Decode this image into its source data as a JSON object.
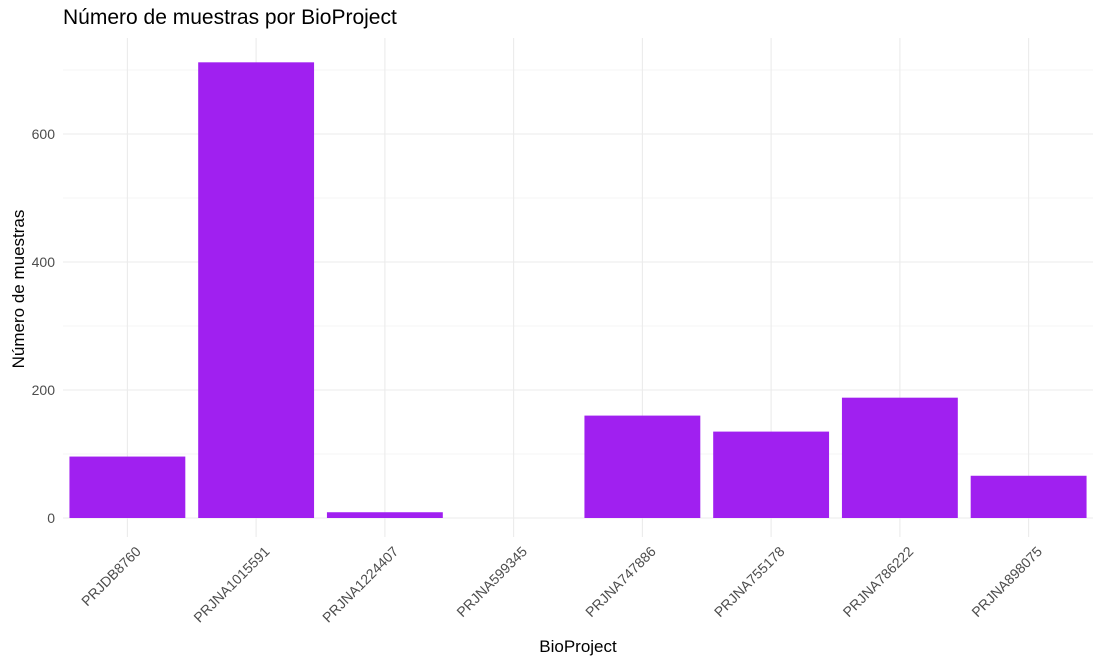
{
  "chart_data": {
    "type": "bar",
    "title": "Número de muestras por BioProject",
    "xlabel": "BioProject",
    "ylabel": "Número de muestras",
    "categories": [
      "PRJDB8760",
      "PRJNA1015591",
      "PRJNA1224407",
      "PRJNA599345",
      "PRJNA747886",
      "PRJNA755178",
      "PRJNA786222",
      "PRJNA898075"
    ],
    "values": [
      96,
      712,
      9,
      0,
      160,
      135,
      188,
      66
    ],
    "ylim": [
      0,
      750
    ],
    "yticks": [
      0,
      200,
      400,
      600
    ],
    "grid": true,
    "colors": {
      "bar": "#a020f0",
      "grid": "#ebebeb",
      "tick_text": "#4d4d4d"
    }
  }
}
